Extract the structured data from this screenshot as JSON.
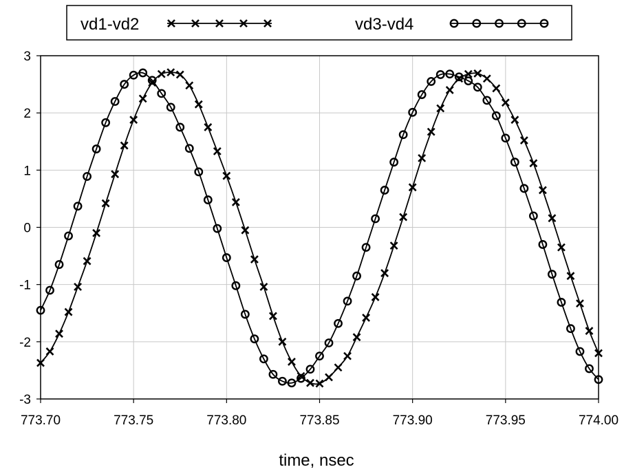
{
  "chart_data": {
    "type": "line",
    "xlabel": "time, nsec",
    "ylabel": "",
    "xlim": [
      773.7,
      774.0
    ],
    "ylim": [
      -3,
      3
    ],
    "x_ticks": [
      "773.70",
      "773.75",
      "773.80",
      "773.85",
      "773.90",
      "773.95",
      "774.00"
    ],
    "y_ticks": [
      "3",
      "2",
      "1",
      "0",
      "-1",
      "-2",
      "-3"
    ],
    "grid": true,
    "legend_position": "top-center",
    "series": [
      {
        "name": "vd1-vd2",
        "marker": "x",
        "x": [
          773.7,
          773.705,
          773.71,
          773.715,
          773.72,
          773.725,
          773.73,
          773.735,
          773.74,
          773.745,
          773.75,
          773.755,
          773.76,
          773.765,
          773.77,
          773.775,
          773.78,
          773.785,
          773.79,
          773.795,
          773.8,
          773.805,
          773.81,
          773.815,
          773.82,
          773.825,
          773.83,
          773.835,
          773.84,
          773.845,
          773.85,
          773.855,
          773.86,
          773.865,
          773.87,
          773.875,
          773.88,
          773.885,
          773.89,
          773.895,
          773.9,
          773.905,
          773.91,
          773.915,
          773.92,
          773.925,
          773.93,
          773.935,
          773.94,
          773.945,
          773.95,
          773.955,
          773.96,
          773.965,
          773.97,
          773.975,
          773.98,
          773.985,
          773.99,
          773.995,
          774.0
        ],
        "y": [
          -2.37,
          -2.17,
          -1.86,
          -1.48,
          -1.04,
          -0.59,
          -0.1,
          0.42,
          0.93,
          1.43,
          1.88,
          2.25,
          2.53,
          2.68,
          2.71,
          2.67,
          2.48,
          2.15,
          1.75,
          1.33,
          0.9,
          0.44,
          -0.05,
          -0.56,
          -1.04,
          -1.55,
          -2.0,
          -2.35,
          -2.6,
          -2.72,
          -2.73,
          -2.62,
          -2.45,
          -2.25,
          -1.92,
          -1.58,
          -1.22,
          -0.8,
          -0.32,
          0.18,
          0.7,
          1.21,
          1.67,
          2.08,
          2.4,
          2.6,
          2.68,
          2.69,
          2.6,
          2.43,
          2.18,
          1.88,
          1.52,
          1.12,
          0.65,
          0.16,
          -0.35,
          -0.85,
          -1.33,
          -1.81,
          -2.2
        ]
      },
      {
        "name": "vd3-vd4",
        "marker": "o",
        "x": [
          773.7,
          773.705,
          773.71,
          773.715,
          773.72,
          773.725,
          773.73,
          773.735,
          773.74,
          773.745,
          773.75,
          773.755,
          773.76,
          773.765,
          773.77,
          773.775,
          773.78,
          773.785,
          773.79,
          773.795,
          773.8,
          773.805,
          773.81,
          773.815,
          773.82,
          773.825,
          773.83,
          773.835,
          773.84,
          773.845,
          773.85,
          773.855,
          773.86,
          773.865,
          773.87,
          773.875,
          773.88,
          773.885,
          773.89,
          773.895,
          773.9,
          773.905,
          773.91,
          773.915,
          773.92,
          773.925,
          773.93,
          773.935,
          773.94,
          773.945,
          773.95,
          773.955,
          773.96,
          773.965,
          773.97,
          773.975,
          773.98,
          773.985,
          773.99,
          773.995,
          774.0
        ],
        "y": [
          -1.45,
          -1.1,
          -0.65,
          -0.15,
          0.37,
          0.89,
          1.37,
          1.83,
          2.2,
          2.5,
          2.66,
          2.7,
          2.57,
          2.34,
          2.1,
          1.75,
          1.38,
          0.97,
          0.48,
          -0.02,
          -0.53,
          -1.02,
          -1.52,
          -1.95,
          -2.3,
          -2.57,
          -2.69,
          -2.72,
          -2.64,
          -2.48,
          -2.25,
          -2.02,
          -1.68,
          -1.29,
          -0.85,
          -0.35,
          0.15,
          0.65,
          1.14,
          1.62,
          2.01,
          2.32,
          2.55,
          2.67,
          2.68,
          2.63,
          2.56,
          2.45,
          2.22,
          1.95,
          1.56,
          1.14,
          0.68,
          0.2,
          -0.3,
          -0.82,
          -1.31,
          -1.77,
          -2.17,
          -2.47,
          -2.66
        ]
      }
    ]
  },
  "legend": [
    {
      "label": "vd1-vd2",
      "marker": "x"
    },
    {
      "label": "vd3-vd4",
      "marker": "o"
    }
  ]
}
